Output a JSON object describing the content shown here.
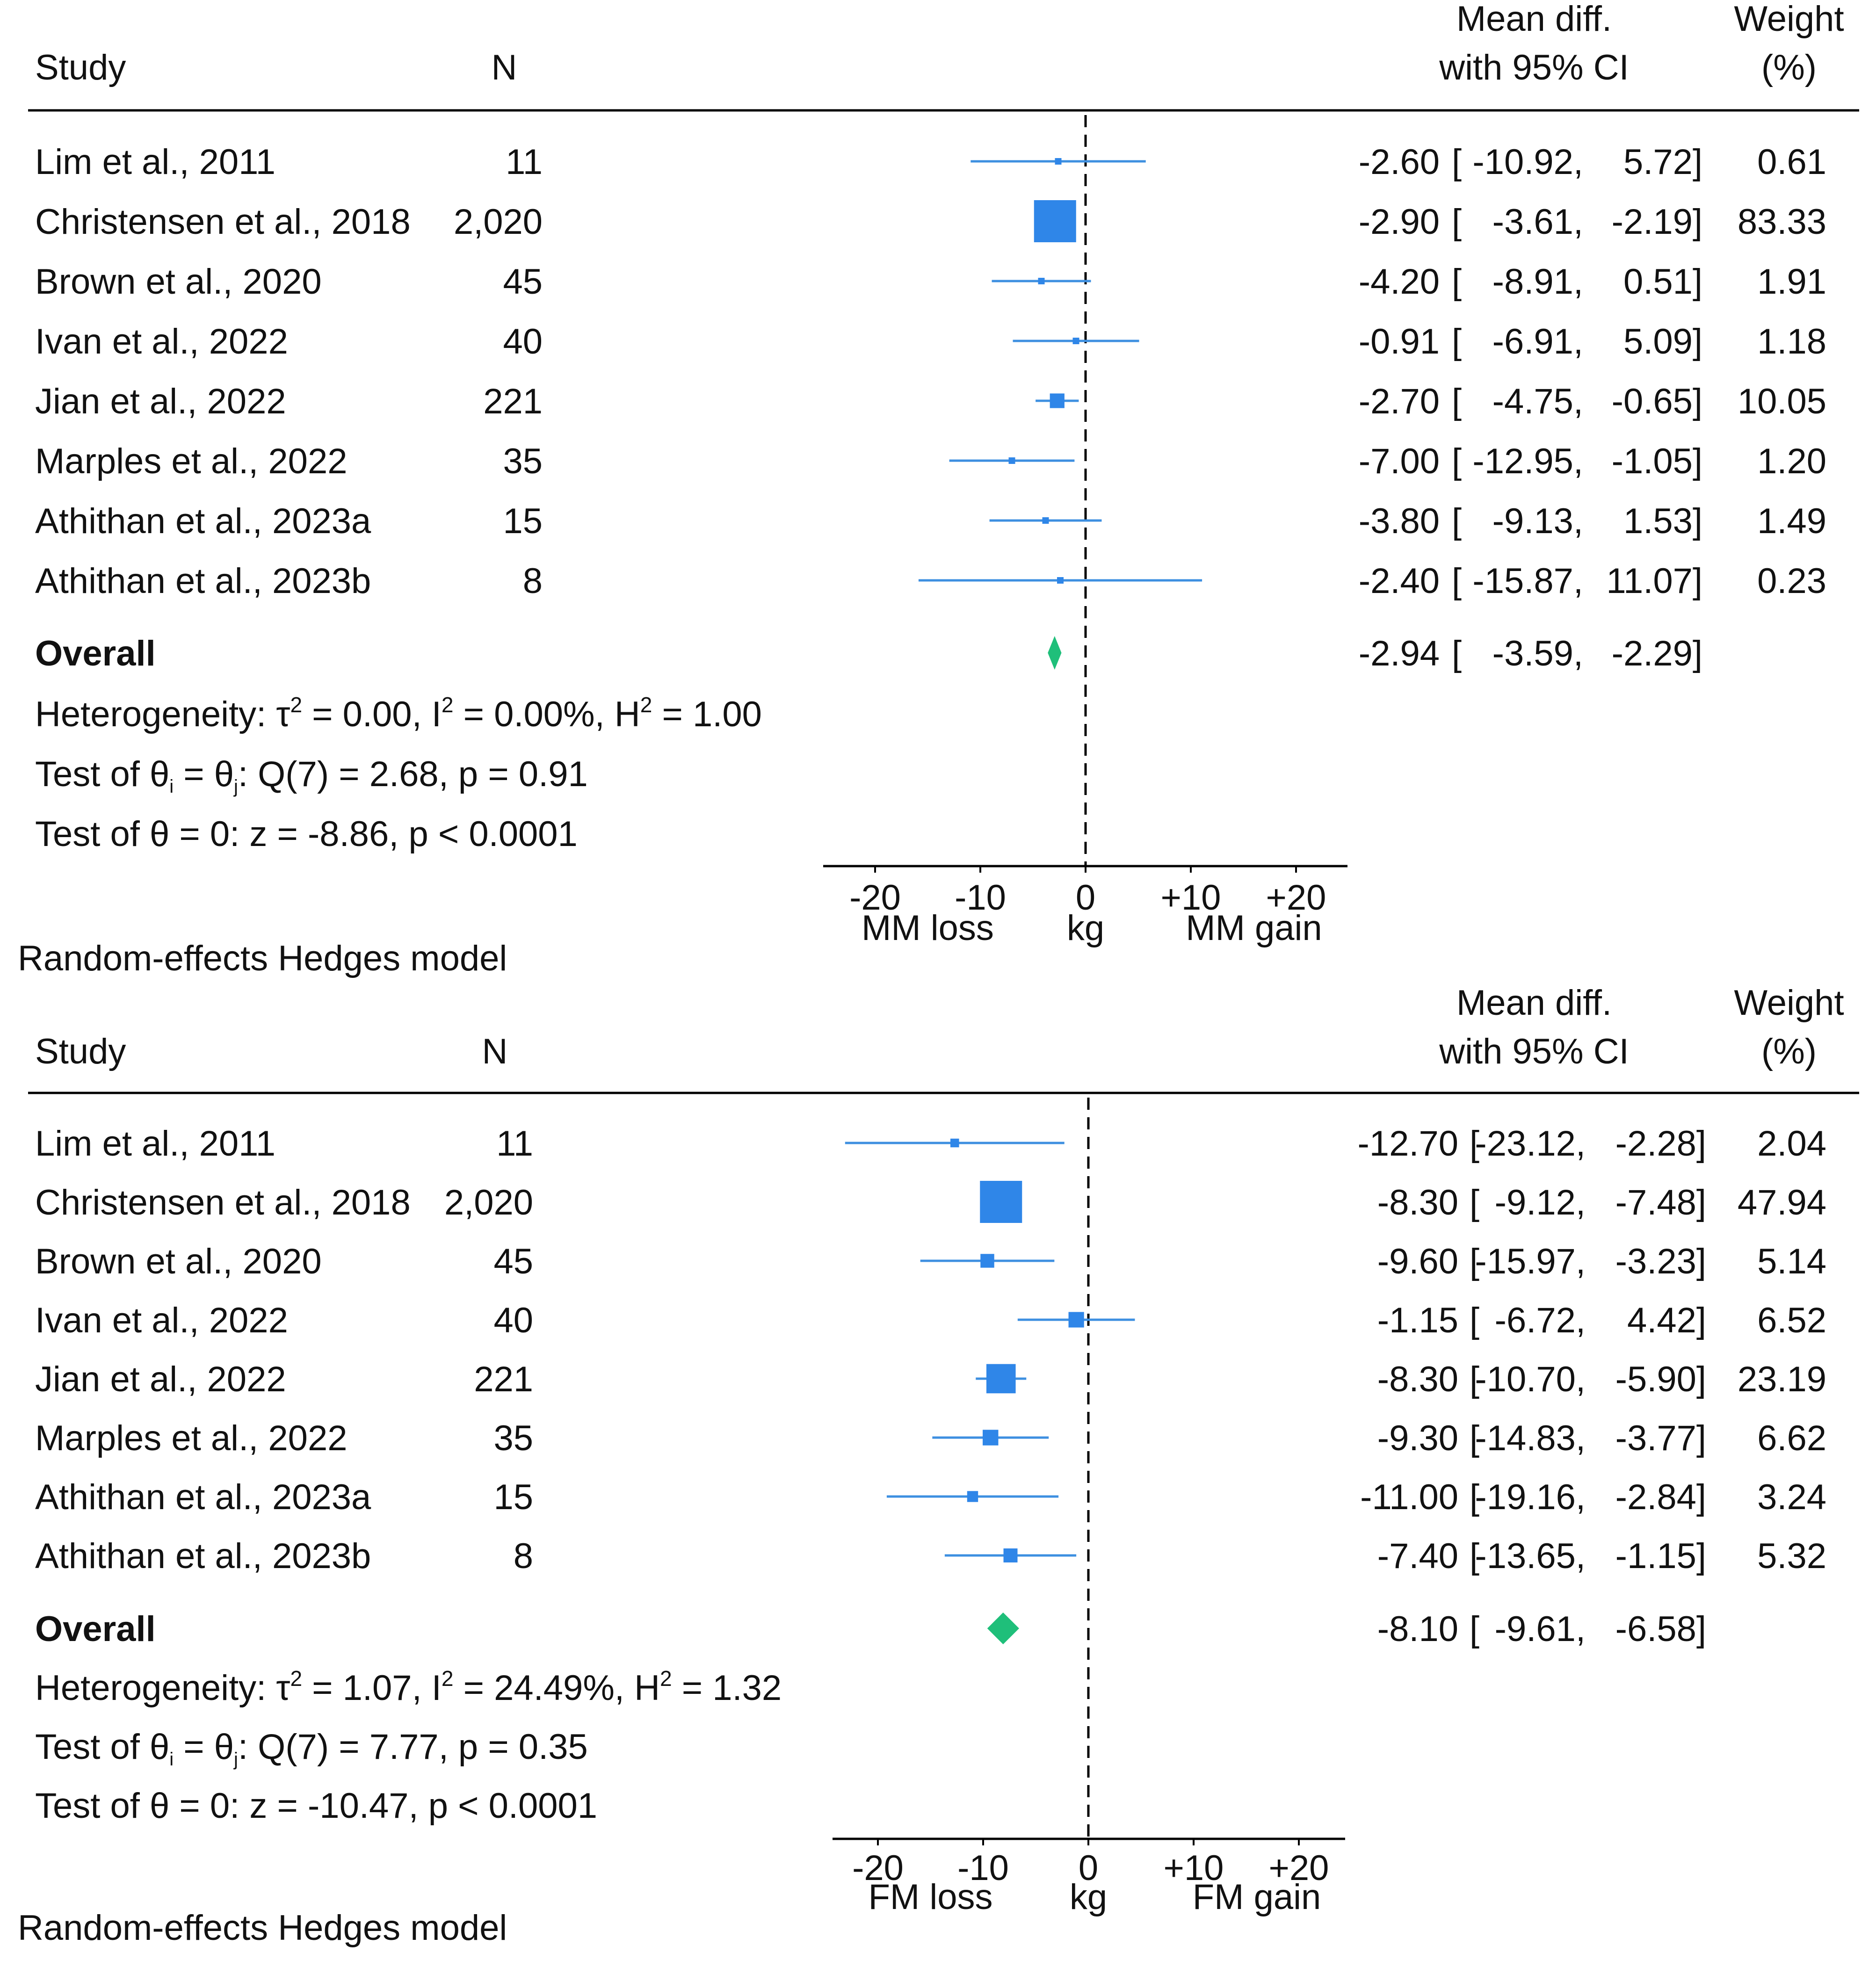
{
  "chart_data": [
    {
      "type": "forest",
      "columns": {
        "study": "Study",
        "n": "N",
        "effect_line1": "Mean diff.",
        "effect_line2": "with 95% CI",
        "weight_line1": "Weight",
        "weight_line2": "(%)"
      },
      "studies": [
        {
          "name": "Lim et al., 2011",
          "n": "11",
          "estimate": -2.6,
          "lower": -10.92,
          "upper": 5.72,
          "weight": 0.61,
          "est_text": "-2.60",
          "lo_text": "-10.92,",
          "hi_text": "5.72]",
          "w_text": "0.61"
        },
        {
          "name": "Christensen et al., 2018",
          "n": "2,020",
          "estimate": -2.9,
          "lower": -3.61,
          "upper": -2.19,
          "weight": 83.33,
          "est_text": "-2.90",
          "lo_text": "-3.61,",
          "hi_text": "-2.19]",
          "w_text": "83.33"
        },
        {
          "name": "Brown et al., 2020",
          "n": "45",
          "estimate": -4.2,
          "lower": -8.91,
          "upper": 0.51,
          "weight": 1.91,
          "est_text": "-4.20",
          "lo_text": "-8.91,",
          "hi_text": "0.51]",
          "w_text": "1.91"
        },
        {
          "name": "Ivan et al., 2022",
          "n": "40",
          "estimate": -0.91,
          "lower": -6.91,
          "upper": 5.09,
          "weight": 1.18,
          "est_text": "-0.91",
          "lo_text": "-6.91,",
          "hi_text": "5.09]",
          "w_text": "1.18"
        },
        {
          "name": "Jian et al., 2022",
          "n": "221",
          "estimate": -2.7,
          "lower": -4.75,
          "upper": -0.65,
          "weight": 10.05,
          "est_text": "-2.70",
          "lo_text": "-4.75,",
          "hi_text": "-0.65]",
          "w_text": "10.05"
        },
        {
          "name": "Marples et al., 2022",
          "n": "35",
          "estimate": -7.0,
          "lower": -12.95,
          "upper": -1.05,
          "weight": 1.2,
          "est_text": "-7.00",
          "lo_text": "-12.95,",
          "hi_text": "-1.05]",
          "w_text": "1.20"
        },
        {
          "name": "Athithan et al., 2023a",
          "n": "15",
          "estimate": -3.8,
          "lower": -9.13,
          "upper": 1.53,
          "weight": 1.49,
          "est_text": "-3.80",
          "lo_text": "-9.13,",
          "hi_text": "1.53]",
          "w_text": "1.49"
        },
        {
          "name": "Athithan et al., 2023b",
          "n": "8",
          "estimate": -2.4,
          "lower": -15.87,
          "upper": 11.07,
          "weight": 0.23,
          "est_text": "-2.40",
          "lo_text": "-15.87,",
          "hi_text": "11.07]",
          "w_text": "0.23"
        }
      ],
      "overall": {
        "label": "Overall",
        "estimate": -2.94,
        "lower": -3.59,
        "upper": -2.29,
        "est_text": "-2.94",
        "lo_text": "-3.59,",
        "hi_text": "-2.29]"
      },
      "stats": {
        "het_a": "Heterogeneity: τ",
        "het_b": " = 0.00, I",
        "het_c": " = 0.00%, H",
        "het_d": " = 1.00",
        "q_a": "Test of θ",
        "q_b": " = θ",
        "q_c": ": Q(7) = 2.68, p = 0.91",
        "z_line": "Test of θ = 0: z = -8.86, p < 0.0001"
      },
      "axis": {
        "xlim": [
          -25,
          25
        ],
        "ticks": [
          -20,
          -10,
          0,
          10,
          20
        ],
        "tick_labels": [
          "-20",
          "-10",
          "0",
          "+10",
          "+20"
        ],
        "left_label": "MM loss",
        "center_label": "kg",
        "right_label": "MM gain"
      },
      "footer": "Random-effects Hedges model"
    },
    {
      "type": "forest",
      "columns": {
        "study": "Study",
        "n": "N",
        "effect_line1": "Mean diff.",
        "effect_line2": "with 95% CI",
        "weight_line1": "Weight",
        "weight_line2": "(%)"
      },
      "studies": [
        {
          "name": "Lim et al., 2011",
          "n": "11",
          "estimate": -12.7,
          "lower": -23.12,
          "upper": -2.28,
          "weight": 2.04,
          "est_text": "-12.70",
          "lo_text": "-23.12,",
          "hi_text": "-2.28]",
          "w_text": "2.04"
        },
        {
          "name": "Christensen et al., 2018",
          "n": "2,020",
          "estimate": -8.3,
          "lower": -9.12,
          "upper": -7.48,
          "weight": 47.94,
          "est_text": "-8.30",
          "lo_text": "-9.12,",
          "hi_text": "-7.48]",
          "w_text": "47.94"
        },
        {
          "name": "Brown et al., 2020",
          "n": "45",
          "estimate": -9.6,
          "lower": -15.97,
          "upper": -3.23,
          "weight": 5.14,
          "est_text": "-9.60",
          "lo_text": "-15.97,",
          "hi_text": "-3.23]",
          "w_text": "5.14"
        },
        {
          "name": "Ivan et al., 2022",
          "n": "40",
          "estimate": -1.15,
          "lower": -6.72,
          "upper": 4.42,
          "weight": 6.52,
          "est_text": "-1.15",
          "lo_text": "-6.72,",
          "hi_text": "4.42]",
          "w_text": "6.52"
        },
        {
          "name": "Jian et al., 2022",
          "n": "221",
          "estimate": -8.3,
          "lower": -10.7,
          "upper": -5.9,
          "weight": 23.19,
          "est_text": "-8.30",
          "lo_text": "-10.70,",
          "hi_text": "-5.90]",
          "w_text": "23.19"
        },
        {
          "name": "Marples et al., 2022",
          "n": "35",
          "estimate": -9.3,
          "lower": -14.83,
          "upper": -3.77,
          "weight": 6.62,
          "est_text": "-9.30",
          "lo_text": "-14.83,",
          "hi_text": "-3.77]",
          "w_text": "6.62"
        },
        {
          "name": "Athithan et al., 2023a",
          "n": "15",
          "estimate": -11.0,
          "lower": -19.16,
          "upper": -2.84,
          "weight": 3.24,
          "est_text": "-11.00",
          "lo_text": "-19.16,",
          "hi_text": "-2.84]",
          "w_text": "3.24"
        },
        {
          "name": "Athithan et al., 2023b",
          "n": "8",
          "estimate": -7.4,
          "lower": -13.65,
          "upper": -1.15,
          "weight": 5.32,
          "est_text": "-7.40",
          "lo_text": "-13.65,",
          "hi_text": "-1.15]",
          "w_text": "5.32"
        }
      ],
      "overall": {
        "label": "Overall",
        "estimate": -8.1,
        "lower": -9.61,
        "upper": -6.58,
        "est_text": "-8.10",
        "lo_text": "-9.61,",
        "hi_text": "-6.58]"
      },
      "stats": {
        "het_a": "Heterogeneity: τ",
        "het_b": " = 1.07, I",
        "het_c": " = 24.49%, H",
        "het_d": " = 1.32",
        "q_a": "Test of θ",
        "q_b": " = θ",
        "q_c": ": Q(7) = 7.77, p = 0.35",
        "z_line": "Test of θ = 0: z = -10.47, p < 0.0001"
      },
      "axis": {
        "xlim": [
          -25,
          25
        ],
        "ticks": [
          -20,
          -10,
          0,
          10,
          20
        ],
        "tick_labels": [
          "-20",
          "-10",
          "0",
          "+10",
          "+20"
        ],
        "left_label": "FM loss",
        "center_label": "kg",
        "right_label": "FM gain"
      },
      "footer": "Random-effects Hedges model"
    }
  ],
  "colors": {
    "marker": "#2f86e8",
    "ci_line": "#3d8fe0",
    "diamond": "#1fbf7a",
    "text": "#111111",
    "rule": "#000000"
  }
}
